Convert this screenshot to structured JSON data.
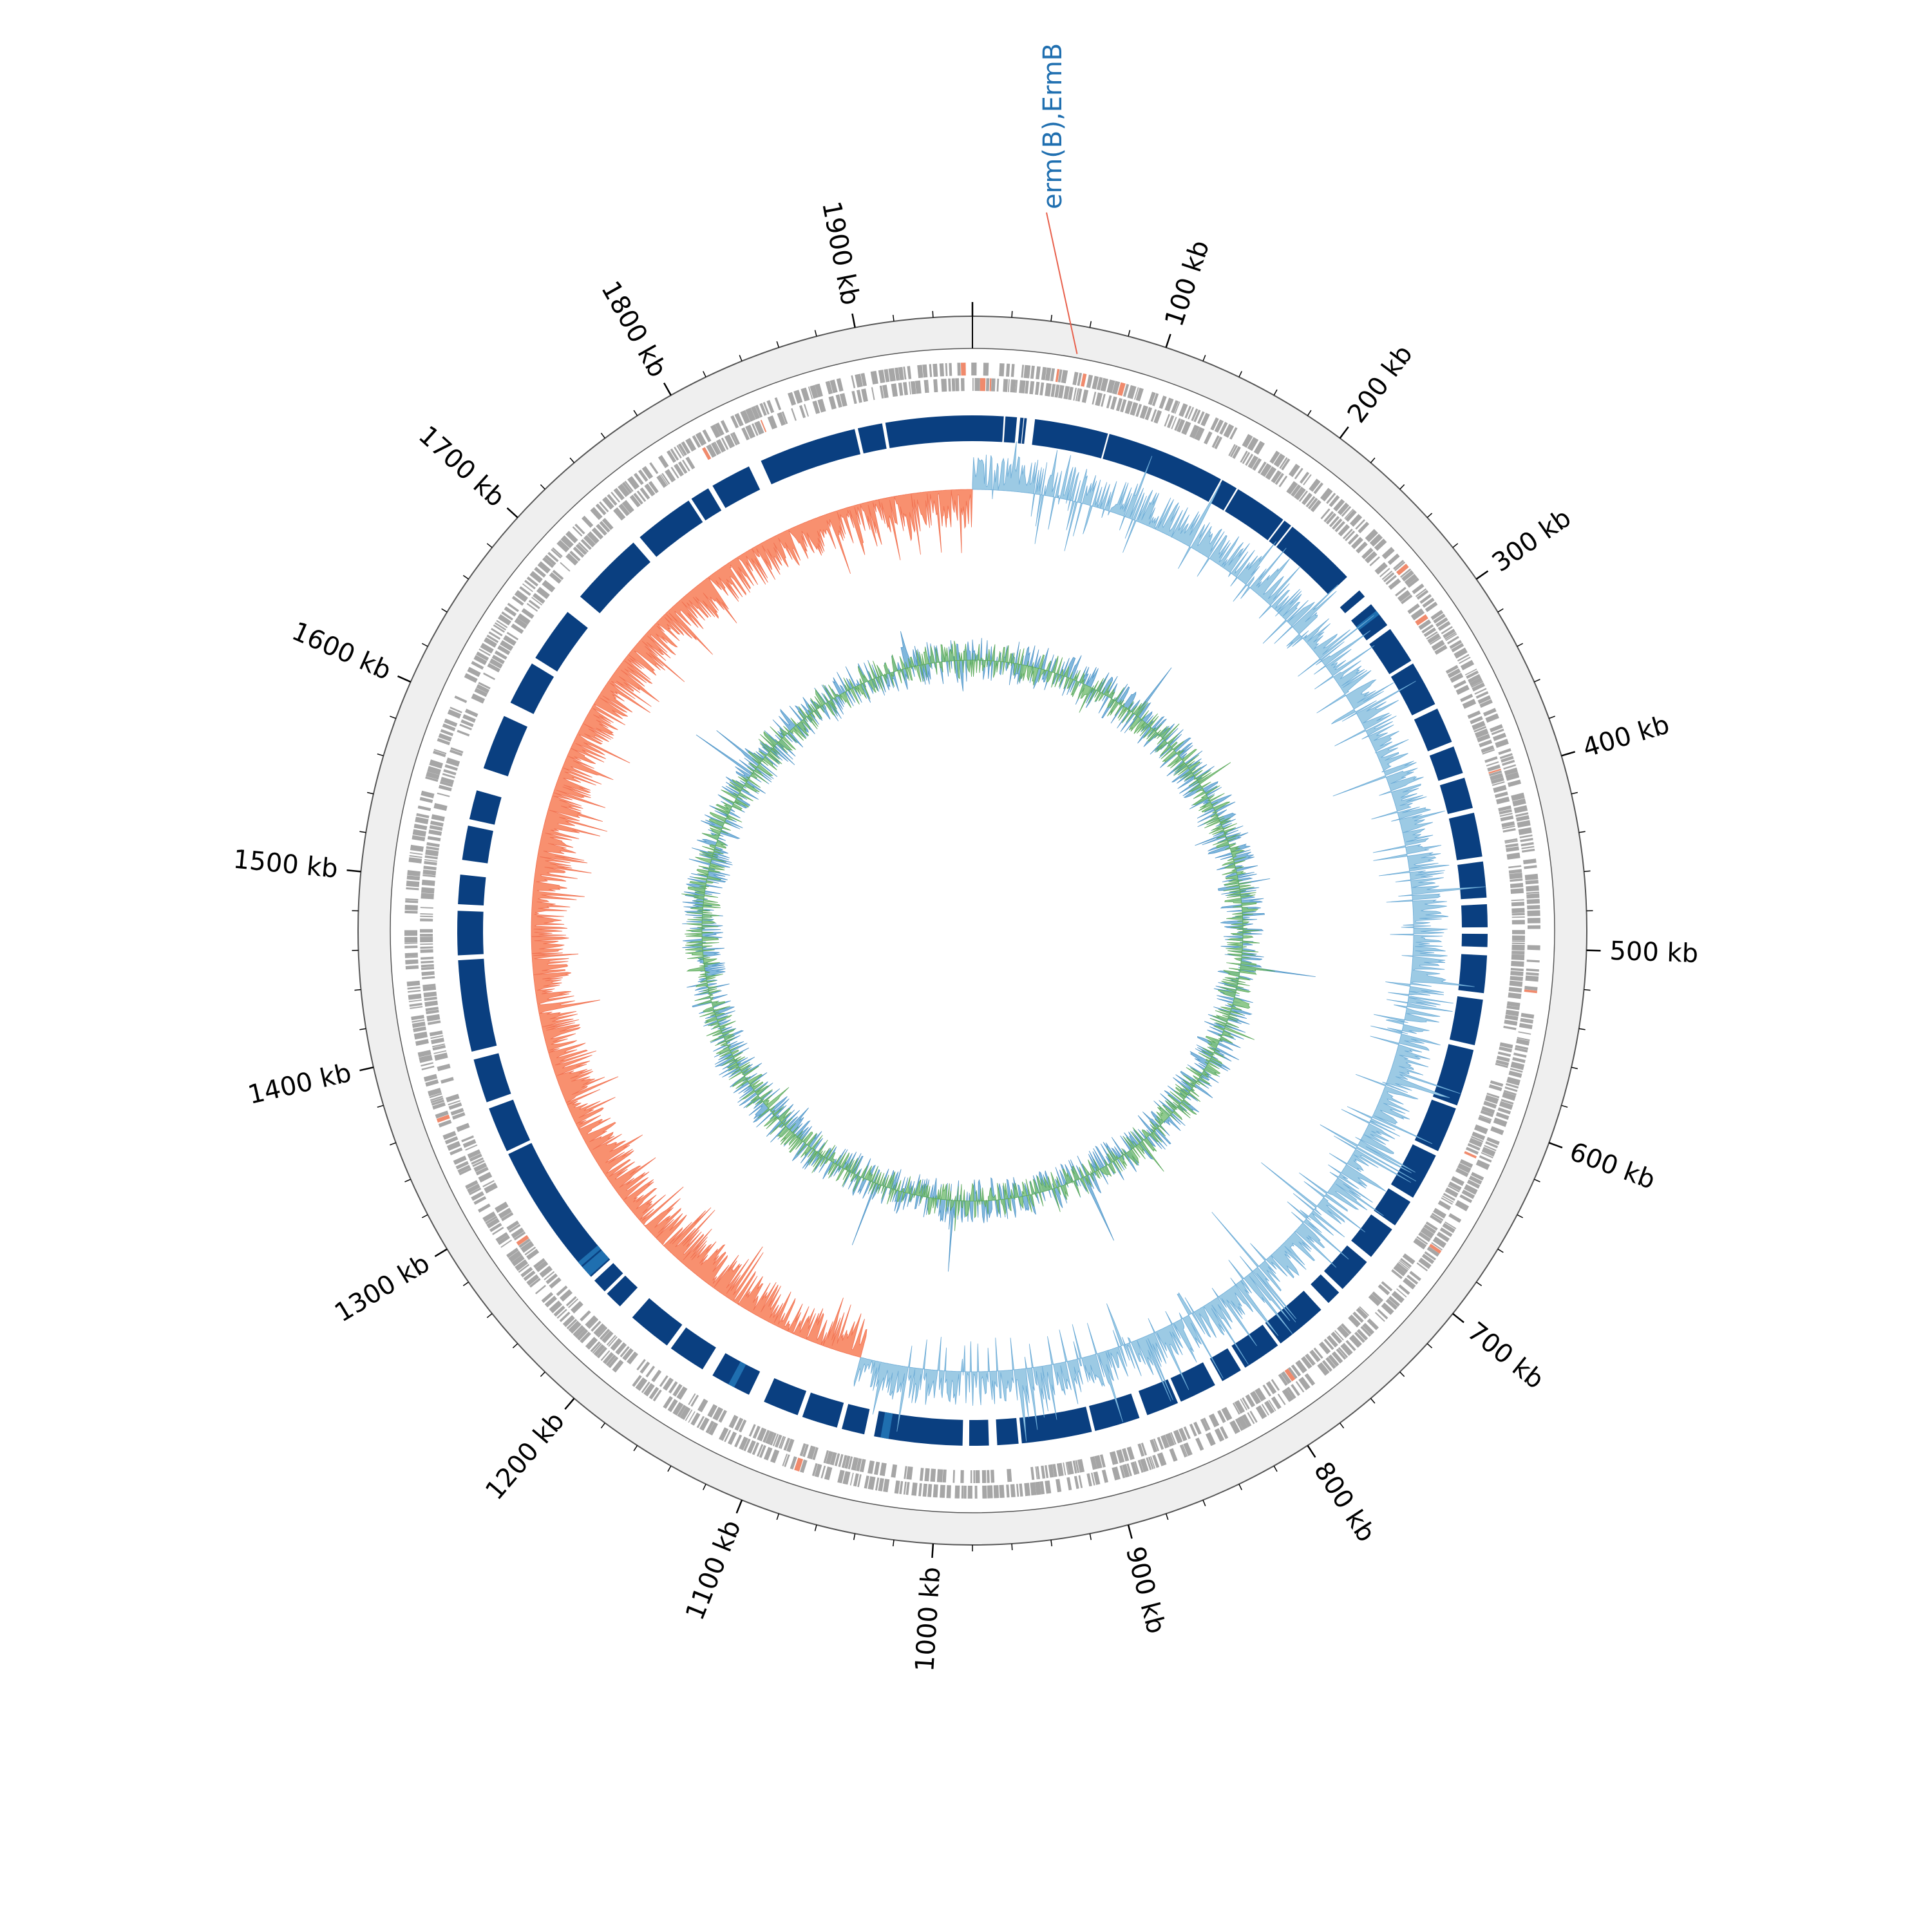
{
  "genome_map": {
    "tick_labels": [
      "100 kb",
      "200 kb",
      "300 kb",
      "400 kb",
      "500 kb",
      "600 kb",
      "700 kb",
      "800 kb",
      "900 kb",
      "1000 kb",
      "1100 kb",
      "1200 kb",
      "1300 kb",
      "1400 kb",
      "1500 kb",
      "1600 kb",
      "1700 kb",
      "1800 kb",
      "1900 kb"
    ],
    "tick_positions_kb": [
      100,
      200,
      300,
      400,
      500,
      600,
      700,
      800,
      900,
      1000,
      1100,
      1200,
      1300,
      1400,
      1500,
      1600,
      1700,
      1800,
      1900
    ],
    "genome_length_kb": 1960,
    "annotation": {
      "label": "erm(B),ErmB",
      "position_kb": 56
    },
    "colors": {
      "ruler_band": "#efefef",
      "cds": "#a6a6a6",
      "cds_highlight": "#f08a6c",
      "blocks": "#0a3f80",
      "blocks_alt": "#1f6fb0",
      "skew_positive": "#9ccae4",
      "skew_negative": "#f8906f",
      "gc_content": "#7cc17a",
      "gc_overlay": "#6aaad6",
      "annotation": "#1f6fb0",
      "annotation_line": "#e8604c"
    }
  }
}
